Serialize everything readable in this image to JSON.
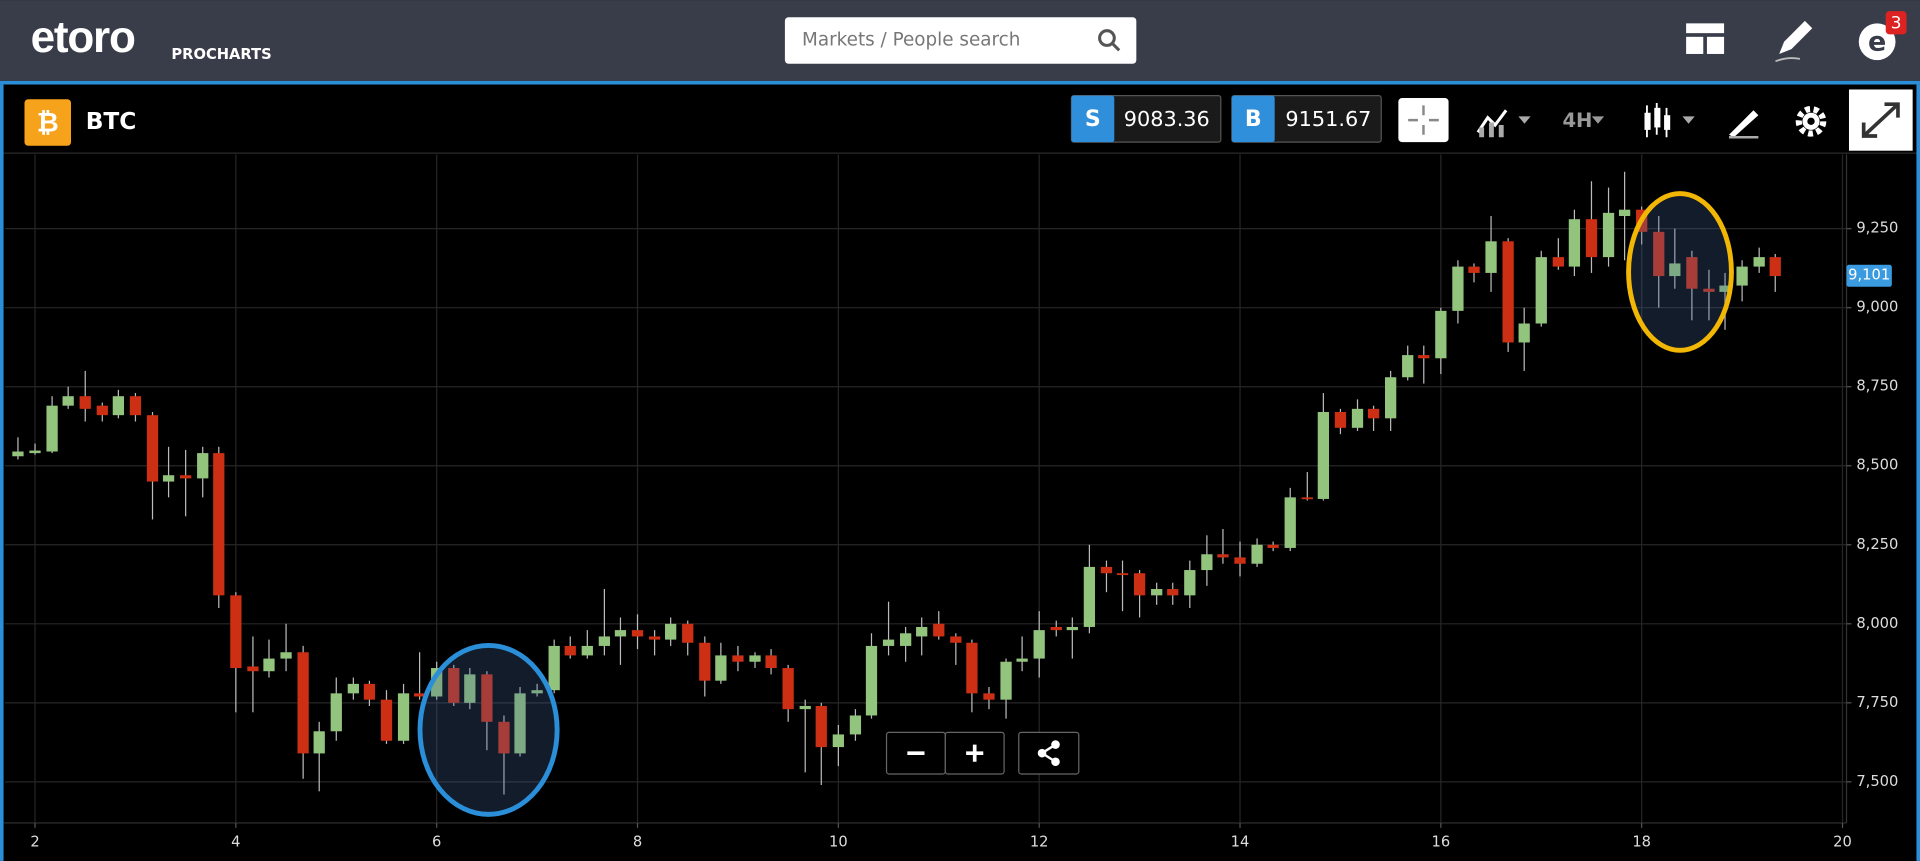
{
  "header": {
    "logo": "etoro",
    "product": "PROCHARTS",
    "search_placeholder": "Markets / People search",
    "notifications": "3"
  },
  "instrument": {
    "symbol": "BTC",
    "sell_label": "S",
    "sell_price": "9083.36",
    "buy_label": "B",
    "buy_price": "9151.67",
    "timeframe": "4H"
  },
  "chart_data": {
    "type": "candlestick",
    "up_color": "#93c47d",
    "down_color": "#cc2f14",
    "grid": true,
    "xlim": [
      1.7,
      20.04
    ],
    "ylim": [
      7370,
      9485
    ],
    "xticks": [
      2,
      4,
      6,
      8,
      10,
      12,
      14,
      16,
      18,
      20
    ],
    "yticks": [
      {
        "value": 7500,
        "label": "7,500"
      },
      {
        "value": 7750,
        "label": "7,750"
      },
      {
        "value": 8000,
        "label": "8,000"
      },
      {
        "value": 8250,
        "label": "8,250"
      },
      {
        "value": 8500,
        "label": "8,500"
      },
      {
        "value": 8750,
        "label": "8,750"
      },
      {
        "value": 9000,
        "label": "9,000"
      },
      {
        "value": 9250,
        "label": "9,250"
      }
    ],
    "last_price": {
      "value": 9101,
      "label": "9,101"
    },
    "x": [
      1.83,
      2,
      2.17,
      2.33,
      2.5,
      2.67,
      2.83,
      3,
      3.17,
      3.33,
      3.5,
      3.67,
      3.83,
      4,
      4.17,
      4.33,
      4.5,
      4.67,
      4.83,
      5,
      5.17,
      5.33,
      5.5,
      5.67,
      5.83,
      6,
      6.17,
      6.33,
      6.5,
      6.67,
      6.83,
      7,
      7.17,
      7.33,
      7.5,
      7.67,
      7.83,
      8,
      8.17,
      8.33,
      8.5,
      8.67,
      8.83,
      9,
      9.17,
      9.33,
      9.5,
      9.67,
      9.83,
      10,
      10.17,
      10.33,
      10.5,
      10.67,
      10.83,
      11,
      11.17,
      11.33,
      11.5,
      11.67,
      11.83,
      12,
      12.17,
      12.33,
      12.5,
      12.67,
      12.83,
      13,
      13.17,
      13.33,
      13.5,
      13.67,
      13.83,
      14,
      14.17,
      14.33,
      14.5,
      14.67,
      14.83,
      15,
      15.17,
      15.33,
      15.5,
      15.67,
      15.83,
      16,
      16.17,
      16.33,
      16.5,
      16.67,
      16.83,
      17,
      17.17,
      17.33,
      17.5,
      17.67,
      17.83,
      18,
      18.17,
      18.33,
      18.5,
      18.67,
      18.83,
      19,
      19.17,
      19.33
    ],
    "open": [
      8530,
      8540,
      8545,
      8690,
      8720,
      8690,
      8660,
      8720,
      8660,
      8450,
      8470,
      8460,
      8540,
      8090,
      7865,
      7850,
      7890,
      7910,
      7590,
      7660,
      7780,
      7810,
      7760,
      7630,
      7780,
      7770,
      7860,
      7750,
      7840,
      7690,
      7590,
      7780,
      7790,
      7930,
      7900,
      7930,
      7960,
      7980,
      7960,
      7950,
      8000,
      7940,
      7820,
      7900,
      7880,
      7900,
      7860,
      7730,
      7740,
      7610,
      7650,
      7710,
      7930,
      7930,
      7960,
      8000,
      7960,
      7940,
      7780,
      7760,
      7880,
      7890,
      7990,
      7980,
      7990,
      8180,
      8160,
      8160,
      8090,
      8110,
      8090,
      8170,
      8220,
      8210,
      8190,
      8250,
      8240,
      8400,
      8395,
      8670,
      8620,
      8680,
      8650,
      8780,
      8850,
      8840,
      8990,
      9130,
      9110,
      9210,
      8890,
      8950,
      9160,
      9130,
      9280,
      9160,
      9290,
      9310,
      9240,
      9100,
      9160,
      9060,
      9050,
      9070,
      9130,
      9160
    ],
    "high": [
      8590,
      8570,
      8720,
      8750,
      8800,
      8700,
      8740,
      8730,
      8670,
      8560,
      8550,
      8560,
      8560,
      8100,
      7960,
      7950,
      8000,
      7930,
      7690,
      7830,
      7830,
      7820,
      7790,
      7810,
      7910,
      7880,
      7870,
      7860,
      7850,
      7710,
      7800,
      7810,
      7950,
      7960,
      7980,
      8110,
      8020,
      8030,
      7980,
      8020,
      8010,
      7960,
      7940,
      7930,
      7910,
      7920,
      7870,
      7760,
      7750,
      7680,
      7730,
      7970,
      8070,
      7990,
      8020,
      8040,
      7970,
      7950,
      7800,
      7890,
      7960,
      8040,
      8010,
      8020,
      8250,
      8200,
      8200,
      8170,
      8130,
      8130,
      8200,
      8280,
      8300,
      8260,
      8270,
      8260,
      8430,
      8480,
      8730,
      8680,
      8710,
      8690,
      8800,
      8880,
      8880,
      9000,
      9150,
      9140,
      9290,
      9220,
      9000,
      9180,
      9220,
      9310,
      9400,
      9380,
      9430,
      9320,
      9290,
      9250,
      9180,
      9120,
      9110,
      9150,
      9190,
      9170
    ],
    "low": [
      8520,
      8535,
      8540,
      8680,
      8640,
      8640,
      8650,
      8640,
      8330,
      8400,
      8340,
      8400,
      8050,
      7720,
      7720,
      7830,
      7850,
      7510,
      7470,
      7630,
      7760,
      7740,
      7620,
      7620,
      7760,
      7760,
      7740,
      7730,
      7600,
      7460,
      7580,
      7770,
      7780,
      7890,
      7890,
      7900,
      7870,
      7920,
      7900,
      7930,
      7900,
      7770,
      7810,
      7850,
      7860,
      7840,
      7690,
      7530,
      7490,
      7550,
      7630,
      7700,
      7900,
      7880,
      7900,
      7950,
      7870,
      7720,
      7730,
      7700,
      7850,
      7830,
      7960,
      7890,
      7970,
      8100,
      8040,
      8020,
      8060,
      8060,
      8050,
      8120,
      8190,
      8150,
      8180,
      8230,
      8230,
      8390,
      8390,
      8600,
      8610,
      8610,
      8610,
      8770,
      8760,
      8790,
      8950,
      9080,
      9050,
      8860,
      8800,
      8940,
      9120,
      9100,
      9110,
      9130,
      9150,
      9200,
      9000,
      9060,
      8960,
      8960,
      8930,
      9020,
      9110,
      9050
    ],
    "close": [
      8545,
      8548,
      8690,
      8720,
      8680,
      8660,
      8720,
      8660,
      8450,
      8470,
      8460,
      8540,
      8090,
      7860,
      7850,
      7890,
      7910,
      7590,
      7660,
      7780,
      7810,
      7760,
      7630,
      7780,
      7770,
      7860,
      7750,
      7840,
      7690,
      7590,
      7780,
      7790,
      7930,
      7900,
      7930,
      7960,
      7980,
      7960,
      7950,
      8000,
      7940,
      7820,
      7900,
      7880,
      7900,
      7860,
      7730,
      7740,
      7610,
      7650,
      7710,
      7930,
      7950,
      7970,
      7990,
      7960,
      7940,
      7780,
      7760,
      7880,
      7890,
      7980,
      7980,
      7990,
      8180,
      8160,
      8155,
      8090,
      8110,
      8090,
      8170,
      8220,
      8210,
      8190,
      8250,
      8240,
      8400,
      8395,
      8670,
      8620,
      8680,
      8650,
      8780,
      8850,
      8840,
      8990,
      9130,
      9110,
      9210,
      8890,
      8950,
      9160,
      9130,
      9280,
      9160,
      9300,
      9310,
      9240,
      9100,
      9140,
      9060,
      9050,
      9070,
      9130,
      9160,
      9100
    ]
  }
}
